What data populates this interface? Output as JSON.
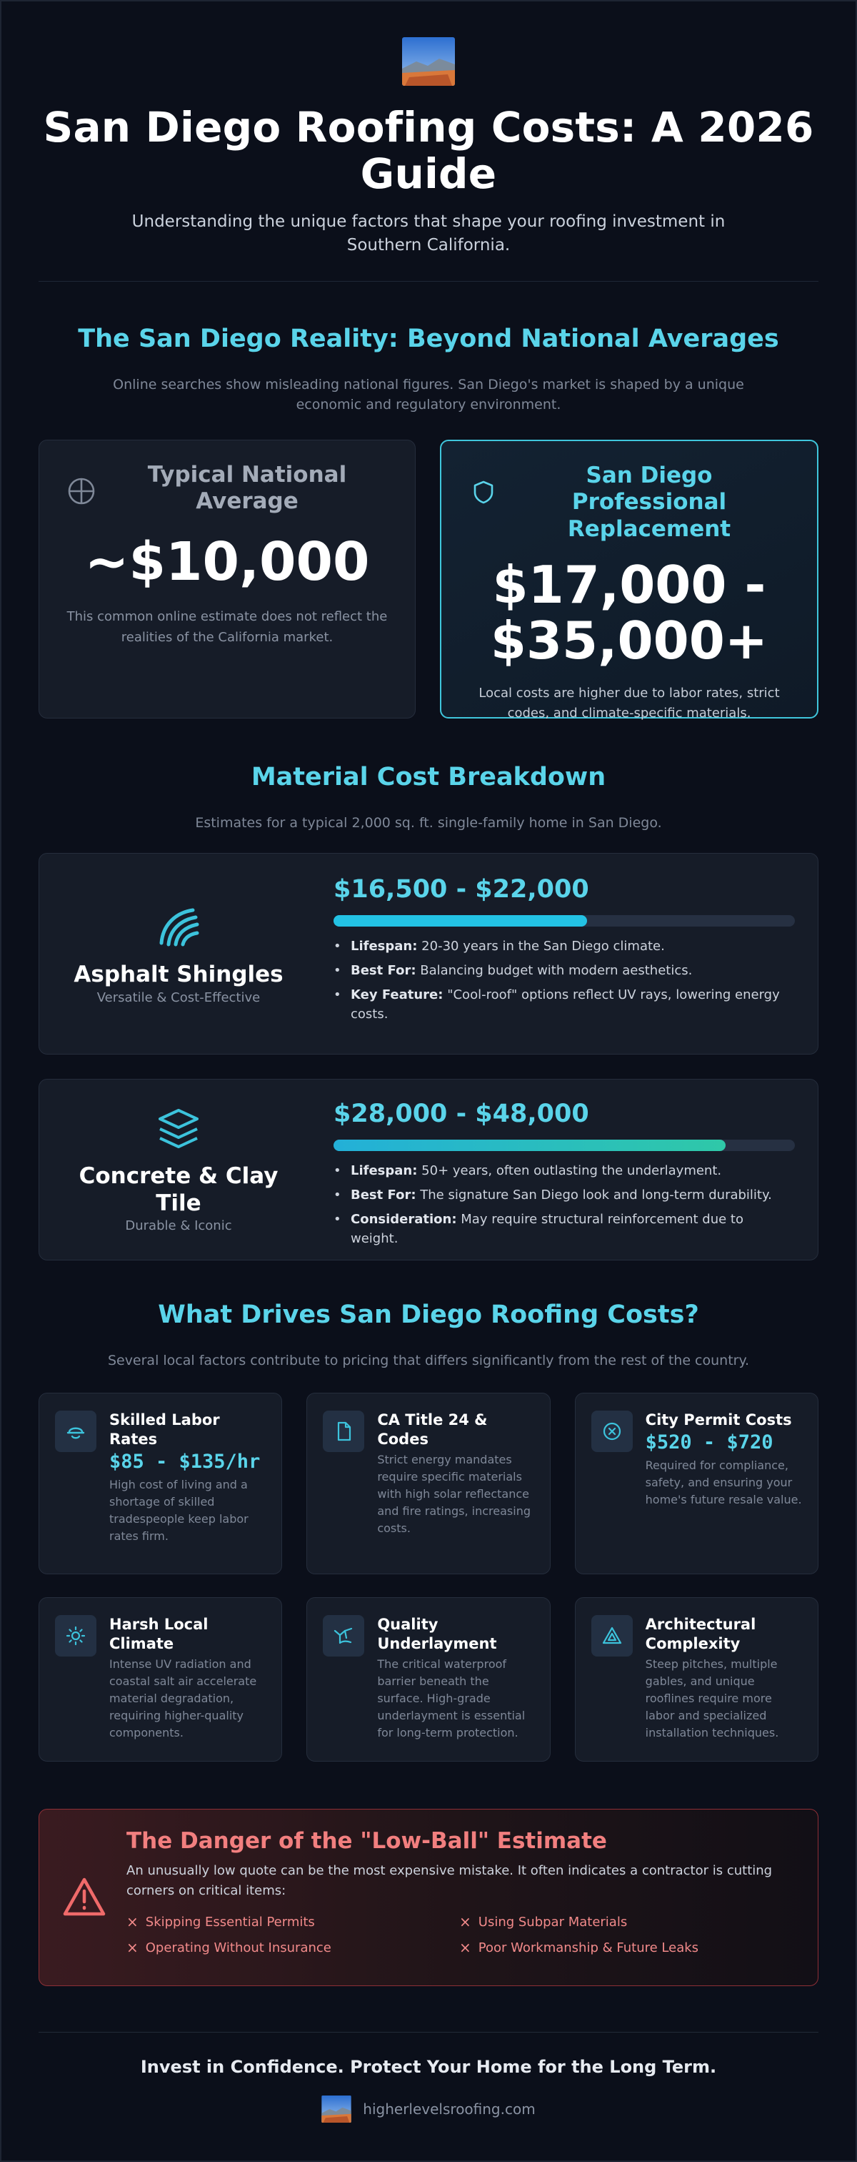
{
  "header": {
    "title": "San Diego Roofing Costs: A 2026 Guide",
    "subtitle": "Understanding the unique factors that shape your roofing investment in Southern California."
  },
  "reality": {
    "title": "The San Diego Reality: Beyond National Averages",
    "subtitle": "Online searches show misleading national figures. San Diego's market is shaped by a unique economic and regulatory environment.",
    "national": {
      "icon": "crosshair-icon",
      "label": "Typical National Average",
      "value": "~$10,000",
      "description": "This common online estimate does not reflect the realities of the California market."
    },
    "sandiego": {
      "icon": "shield-icon",
      "label": "San Diego Professional Replacement",
      "value": "$17,000 - $35,000+",
      "description": "Local costs are higher due to labor rates, strict codes, and climate-specific materials."
    }
  },
  "materials": {
    "title": "Material Cost Breakdown",
    "subtitle": "Estimates for a typical 2,000 sq. ft. single-family home in San Diego.",
    "items": [
      {
        "icon": "shingles-icon",
        "name": "Asphalt Shingles",
        "tagline": "Versatile & Cost-Effective",
        "price": "$16,500 - $22,000",
        "bar_fraction": 0.55,
        "bullets": [
          {
            "label": "Lifespan:",
            "text": "20-30 years in the San Diego climate."
          },
          {
            "label": "Best For:",
            "text": "Balancing budget with modern aesthetics."
          },
          {
            "label": "Key Feature:",
            "text": "\"Cool-roof\" options reflect UV rays, lowering energy costs."
          }
        ]
      },
      {
        "icon": "layers-icon",
        "name": "Concrete & Clay Tile",
        "tagline": "Durable & Iconic",
        "price": "$28,000 - $48,000",
        "bar_fraction": 0.85,
        "bullets": [
          {
            "label": "Lifespan:",
            "text": "50+ years, often outlasting the underlayment."
          },
          {
            "label": "Best For:",
            "text": "The signature San Diego look and long-term durability."
          },
          {
            "label": "Consideration:",
            "text": "May require structural reinforcement due to weight."
          }
        ]
      }
    ]
  },
  "drivers": {
    "title": "What Drives San Diego Roofing Costs?",
    "subtitle": "Several local factors contribute to pricing that differs significantly from the rest of the country.",
    "items": [
      {
        "icon": "hardhat-icon",
        "title": "Skilled Labor Rates",
        "price": "$85 - $135/hr",
        "description": "High cost of living and a shortage of skilled tradespeople keep labor rates firm."
      },
      {
        "icon": "document-icon",
        "title": "CA Title 24 & Codes",
        "price": "",
        "description": "Strict energy mandates require specific materials with high solar reflectance and fire ratings, increasing costs."
      },
      {
        "icon": "circle-x-icon",
        "title": "City Permit Costs",
        "price": "$520 - $720",
        "description": "Required for compliance, safety, and ensuring your home's future resale value."
      },
      {
        "icon": "sun-icon",
        "title": "Harsh Local Climate",
        "price": "",
        "description": "Intense UV radiation and coastal salt air accelerate material degradation, requiring higher-quality components."
      },
      {
        "icon": "waterproof-icon",
        "title": "Quality Underlayment",
        "price": "",
        "description": "The critical waterproof barrier beneath the surface. High-grade underlayment is essential for long-term protection."
      },
      {
        "icon": "triangle-icon",
        "title": "Architectural Complexity",
        "price": "",
        "description": "Steep pitches, multiple gables, and unique rooflines require more labor and specialized installation techniques."
      }
    ]
  },
  "danger": {
    "icon": "warning-icon",
    "title": "The Danger of the \"Low-Ball\" Estimate",
    "text": "An unusually low quote can be the most expensive mistake. It often indicates a contractor is cutting corners on critical items:",
    "mark": "×",
    "items": [
      "Skipping Essential Permits",
      "Using Subpar Materials",
      "Operating Without Insurance",
      "Poor Workmanship & Future Leaks"
    ]
  },
  "footer": {
    "cta": "Invest in Confidence. Protect Your Home for the Long Term.",
    "url": "higherlevelsroofing.com"
  },
  "colors": {
    "accent": "#5ad4ea",
    "background": "#0b0f1a",
    "card": "#161c28",
    "danger": "#f27f7f"
  }
}
